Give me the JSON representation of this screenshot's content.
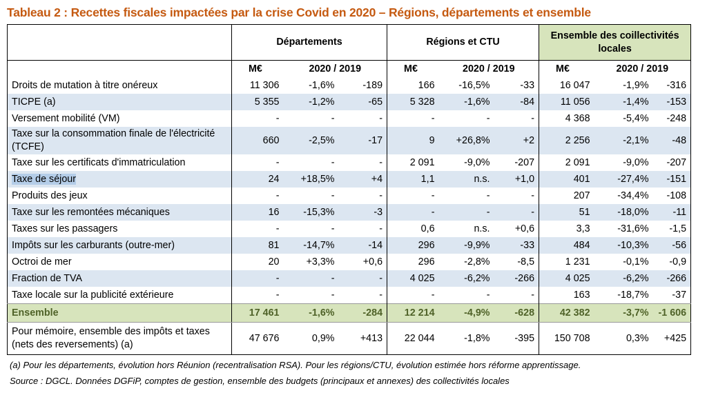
{
  "title": "Tableau 2 : Recettes fiscales impactées par la crise Covid en 2020 – Régions, départements et ensemble",
  "table": {
    "groups": [
      "Départements",
      "Régions et CTU",
      "Ensemble des coillectivités locales"
    ],
    "subheaders": [
      "M€",
      "2020 / 2019",
      "M€",
      "2020 / 2019",
      "M€",
      "2020 / 2019"
    ],
    "rows": [
      {
        "label": "Droits de mutation à titre onéreux",
        "cells": [
          "11 306",
          "-1,6%",
          "-189",
          "166",
          "-16,5%",
          "-33",
          "16 047",
          "-1,9%",
          "-316"
        ]
      },
      {
        "label": "TICPE (a)",
        "cells": [
          "5 355",
          "-1,2%",
          "-65",
          "5 328",
          "-1,6%",
          "-84",
          "11 056",
          "-1,4%",
          "-153"
        ]
      },
      {
        "label": "Versement mobilité (VM)",
        "cells": [
          "-",
          "-",
          "-",
          "-",
          "-",
          "-",
          "4 368",
          "-5,4%",
          "-248"
        ]
      },
      {
        "label": "Taxe sur la consommation finale de l'électricité (TCFE)",
        "cells": [
          "660",
          "-2,5%",
          "-17",
          "9",
          "+26,8%",
          "+2",
          "2 256",
          "-2,1%",
          "-48"
        ]
      },
      {
        "label": "Taxe sur les certificats d'immatriculation",
        "cells": [
          "-",
          "-",
          "-",
          "2 091",
          "-9,0%",
          "-207",
          "2 091",
          "-9,0%",
          "-207"
        ]
      },
      {
        "label": "Taxe de séjour",
        "cells": [
          "24",
          "+18,5%",
          "+4",
          "1,1",
          "n.s.",
          "+1,0",
          "401",
          "-27,4%",
          "-151"
        ]
      },
      {
        "label": "Produits des jeux",
        "cells": [
          "-",
          "-",
          "-",
          "-",
          "-",
          "-",
          "207",
          "-34,4%",
          "-108"
        ]
      },
      {
        "label": "Taxe sur les remontées mécaniques",
        "cells": [
          "16",
          "-15,3%",
          "-3",
          "-",
          "-",
          "-",
          "51",
          "-18,0%",
          "-11"
        ]
      },
      {
        "label": "Taxes sur les passagers",
        "cells": [
          "-",
          "-",
          "-",
          "0,6",
          "n.s.",
          "+0,6",
          "3,3",
          "-31,6%",
          "-1,5"
        ]
      },
      {
        "label": "Impôts sur les carburants (outre-mer)",
        "cells": [
          "81",
          "-14,7%",
          "-14",
          "296",
          "-9,9%",
          "-33",
          "484",
          "-10,3%",
          "-56"
        ]
      },
      {
        "label": "Octroi de mer",
        "cells": [
          "20",
          "+3,3%",
          "+0,6",
          "296",
          "-2,8%",
          "-8,5",
          "1 231",
          "-0,1%",
          "-0,9"
        ]
      },
      {
        "label": "Fraction de TVA",
        "cells": [
          "-",
          "-",
          "-",
          "4 025",
          "-6,2%",
          "-266",
          "4 025",
          "-6,2%",
          "-266"
        ]
      },
      {
        "label": "Taxe locale sur la publicité extérieure",
        "cells": [
          "-",
          "-",
          "-",
          "-",
          "-",
          "-",
          "163",
          "-18,7%",
          "-37"
        ]
      },
      {
        "label": "Ensemble",
        "cells": [
          "17 461",
          "-1,6%",
          "-284",
          "12 214",
          "-4,9%",
          "-628",
          "42 382",
          "-3,7%",
          "-1 606"
        ]
      },
      {
        "label": "Pour mémoire, ensemble des impôts et taxes (nets des reversements) (a)",
        "cells": [
          "47 676",
          "0,9%",
          "+413",
          "22 044",
          "-1,8%",
          "-395",
          "150 708",
          "0,3%",
          "+425"
        ]
      }
    ]
  },
  "footnotes": [
    "(a) Pour les départements, évolution hors Réunion (recentralisation RSA). Pour les régions/CTU, évolution estimée hors réforme apprentissage.",
    "Source : DGCL. Données DGFiP, comptes de gestion, ensemble des budgets (principaux et annexes) des collectivités locales"
  ]
}
